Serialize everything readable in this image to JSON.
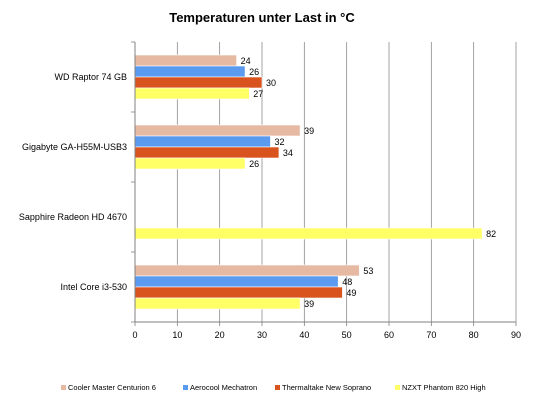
{
  "chart_data": {
    "type": "bar",
    "orientation": "horizontal",
    "title": "Temperaturen unter Last in °C",
    "categories": [
      "WD Raptor 74 GB",
      "Gigabyte GA-H55M-USB3",
      "Sapphire Radeon HD 4670",
      "Intel Core i3-530"
    ],
    "series": [
      {
        "name": "Cooler Master Centurion 6",
        "color": "#e6b9a3",
        "values": [
          24,
          39,
          null,
          53
        ]
      },
      {
        "name": "Aerocool Mechatron",
        "color": "#5b9bef",
        "values": [
          26,
          32,
          null,
          48
        ]
      },
      {
        "name": "Thermaltake New Soprano",
        "color": "#d9531e",
        "values": [
          30,
          34,
          null,
          49
        ]
      },
      {
        "name": "NZXT Phantom 820 High",
        "color": "#ffff66",
        "values": [
          27,
          26,
          82,
          39
        ]
      }
    ],
    "xlim": [
      0,
      90
    ],
    "xticks": [
      "0",
      "10",
      "20",
      "30",
      "40",
      "50",
      "60",
      "70",
      "80",
      "90"
    ],
    "grid": "vertical",
    "legend": "bottom"
  }
}
